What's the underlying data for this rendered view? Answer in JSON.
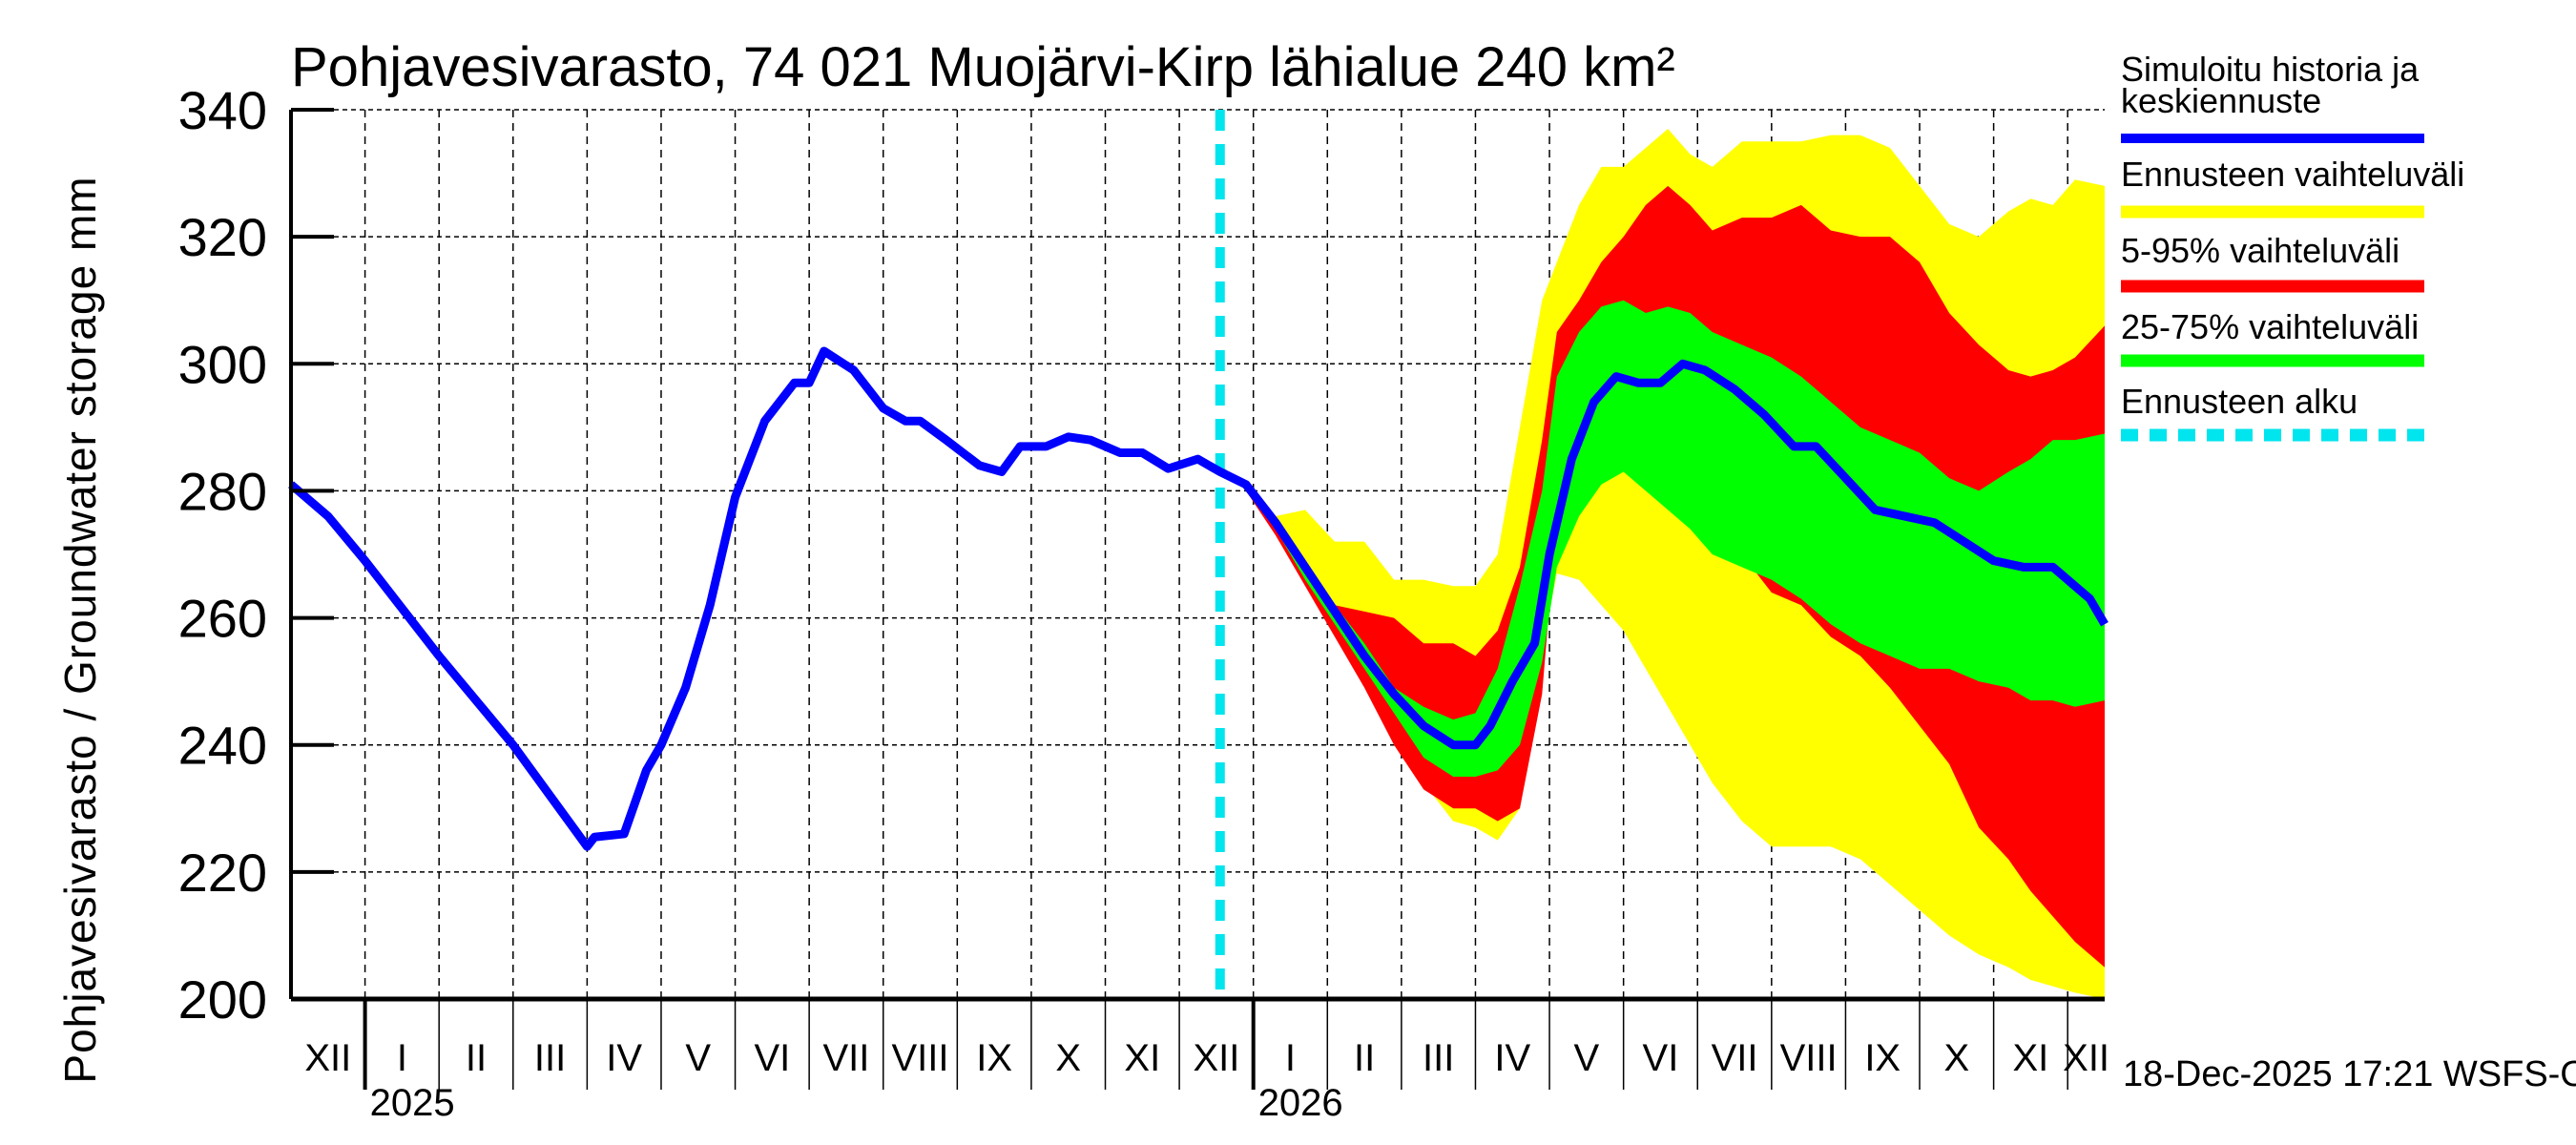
{
  "chart_data": {
    "type": "area",
    "title": "Pohjavesivarasto, 74 021 Muojärvi-Kirp lähialue 240 km²",
    "ylabel": "Pohjavesivarasto / Groundwater storage   mm",
    "xlabel": "",
    "ylim": [
      200,
      340
    ],
    "yticks": [
      200,
      220,
      240,
      260,
      280,
      300,
      320,
      340
    ],
    "grid": true,
    "x_units": "months since 2025-01-01",
    "xlim": [
      -1.0,
      23.5
    ],
    "month_ticks": [
      {
        "x": -1,
        "label": "XII"
      },
      {
        "x": 0,
        "label": "I"
      },
      {
        "x": 1,
        "label": "II"
      },
      {
        "x": 2,
        "label": "III"
      },
      {
        "x": 3,
        "label": "IV"
      },
      {
        "x": 4,
        "label": "V"
      },
      {
        "x": 5,
        "label": "VI"
      },
      {
        "x": 6,
        "label": "VII"
      },
      {
        "x": 7,
        "label": "VIII"
      },
      {
        "x": 8,
        "label": "IX"
      },
      {
        "x": 9,
        "label": "X"
      },
      {
        "x": 10,
        "label": "XI"
      },
      {
        "x": 11,
        "label": "XII"
      },
      {
        "x": 12,
        "label": "I"
      },
      {
        "x": 13,
        "label": "II"
      },
      {
        "x": 14,
        "label": "III"
      },
      {
        "x": 15,
        "label": "IV"
      },
      {
        "x": 16,
        "label": "V"
      },
      {
        "x": 17,
        "label": "VI"
      },
      {
        "x": 18,
        "label": "VII"
      },
      {
        "x": 19,
        "label": "VIII"
      },
      {
        "x": 20,
        "label": "IX"
      },
      {
        "x": 21,
        "label": "X"
      },
      {
        "x": 22,
        "label": "XI"
      },
      {
        "x": 23,
        "label": "XII"
      }
    ],
    "year_ticks": [
      {
        "x": 0,
        "label": "2025"
      },
      {
        "x": 12,
        "label": "2026"
      }
    ],
    "forecast_start": 11.55,
    "legend": {
      "placement": "right",
      "entries": [
        {
          "label": "Simuloitu historia ja keskiennuste",
          "color": "#0000ff",
          "style": "line"
        },
        {
          "label": "Ennusteen vaihteluväli",
          "color": "#ffff00",
          "style": "band"
        },
        {
          "label": "5-95% vaihteluväli",
          "color": "#ff0000",
          "style": "band"
        },
        {
          "label": "25-75% vaihteluväli",
          "color": "#00ff00",
          "style": "band"
        },
        {
          "label": "Ennusteen alku",
          "color": "#00e5ee",
          "style": "dashed"
        }
      ]
    },
    "series": [
      {
        "name": "Simuloitu historia ja keskiennuste",
        "color": "#0000ff",
        "x": [
          -1.0,
          -0.5,
          0,
          1,
          2,
          3.0,
          3.1,
          3.5,
          3.8,
          4,
          4.33,
          4.66,
          5,
          5.4,
          5.8,
          6.0,
          6.2,
          6.6,
          7.0,
          7.3,
          7.5,
          7.85,
          8.3,
          8.6,
          8.85,
          9.2,
          9.5,
          9.8,
          10.2,
          10.5,
          10.85,
          11.25,
          11.55,
          11.9,
          12.3,
          12.7,
          13.1,
          13.5,
          13.9,
          14.3,
          14.7,
          15.0,
          15.2,
          15.5,
          15.8,
          16.0,
          16.3,
          16.6,
          16.9,
          17.2,
          17.5,
          17.8,
          18.1,
          18.5,
          18.9,
          19.3,
          19.6,
          20.0,
          20.4,
          20.8,
          21.2,
          21.6,
          22.0,
          22.4,
          22.8,
          23.1,
          23.3,
          23.5
        ],
        "values": [
          281,
          276,
          269,
          254,
          240,
          224,
          225.5,
          226,
          236,
          240,
          249,
          262,
          279,
          291,
          297,
          297,
          302,
          299,
          293,
          291,
          291,
          288,
          284,
          283,
          287,
          287,
          288.5,
          288,
          286,
          286,
          283.5,
          285,
          283,
          281,
          275,
          268,
          261,
          254,
          248,
          243,
          240,
          240,
          243,
          250,
          256,
          270,
          285,
          294,
          298,
          297,
          297,
          300,
          299,
          296,
          292,
          287,
          287,
          282,
          277,
          276,
          275,
          272,
          269,
          268,
          268,
          265,
          263,
          259
        ]
      },
      {
        "name": "Ennusteen vaihteluväli",
        "color": "#ffff00",
        "x": [
          11.55,
          11.9,
          12.3,
          12.7,
          13.1,
          13.5,
          13.9,
          14.3,
          14.7,
          15.0,
          15.3,
          15.6,
          15.9,
          16.1,
          16.4,
          16.7,
          17.0,
          17.3,
          17.6,
          17.9,
          18.2,
          18.6,
          19.0,
          19.4,
          19.8,
          20.2,
          20.6,
          21.0,
          21.4,
          21.8,
          22.2,
          22.5,
          22.8,
          23.1,
          23.5
        ],
        "upper": [
          284,
          281,
          276,
          277,
          272,
          272,
          266,
          266,
          265,
          265,
          270,
          290,
          310,
          316,
          325,
          331,
          331,
          334,
          337,
          333,
          331,
          335,
          335,
          335,
          336,
          336,
          334,
          328,
          322,
          320,
          324,
          326,
          325,
          329,
          328
        ],
        "lower": [
          284,
          280,
          274,
          266,
          258,
          250,
          242,
          234,
          228,
          227,
          225,
          230,
          255,
          267,
          266,
          262,
          258,
          252,
          246,
          240,
          234,
          228,
          224,
          224,
          224,
          222,
          218,
          214,
          210,
          207,
          205,
          203,
          202,
          201,
          200
        ]
      },
      {
        "name": "5-95% vaihteluväli",
        "color": "#ff0000",
        "x": [
          11.55,
          11.9,
          12.3,
          12.7,
          13.1,
          13.5,
          13.9,
          14.3,
          14.7,
          15.0,
          15.3,
          15.6,
          15.9,
          16.1,
          16.4,
          16.7,
          17.0,
          17.3,
          17.6,
          17.9,
          18.2,
          18.6,
          19.0,
          19.4,
          19.8,
          20.2,
          20.6,
          21.0,
          21.4,
          21.8,
          22.2,
          22.5,
          22.8,
          23.1,
          23.5
        ],
        "upper": [
          284,
          281,
          274,
          268,
          262,
          261,
          260,
          256,
          256,
          254,
          258,
          268,
          288,
          305,
          310,
          316,
          320,
          325,
          328,
          325,
          321,
          323,
          323,
          325,
          321,
          320,
          320,
          316,
          308,
          303,
          299,
          298,
          299,
          301,
          306
        ],
        "lower": [
          284,
          280,
          273,
          265,
          257,
          249,
          240,
          233,
          230,
          230,
          228,
          230,
          248,
          276,
          286,
          287,
          285,
          283,
          282,
          279,
          274,
          270,
          264,
          262,
          257,
          254,
          249,
          243,
          237,
          227,
          222,
          217,
          213,
          209,
          205
        ]
      },
      {
        "name": "25-75% vaihteluväli",
        "color": "#00ff00",
        "x": [
          11.55,
          11.9,
          12.3,
          12.7,
          13.1,
          13.5,
          13.9,
          14.3,
          14.7,
          15.0,
          15.3,
          15.6,
          15.9,
          16.1,
          16.4,
          16.7,
          17.0,
          17.3,
          17.6,
          17.9,
          18.2,
          18.6,
          19.0,
          19.4,
          19.8,
          20.2,
          20.6,
          21.0,
          21.4,
          21.8,
          22.2,
          22.5,
          22.8,
          23.1,
          23.5
        ],
        "upper": [
          284,
          281,
          275,
          268,
          262,
          256,
          249,
          246,
          244,
          245,
          252,
          265,
          280,
          298,
          305,
          309,
          310,
          308,
          309,
          308,
          305,
          303,
          301,
          298,
          294,
          290,
          288,
          286,
          282,
          280,
          283,
          285,
          288,
          288,
          289
        ],
        "lower": [
          284,
          280,
          274,
          266,
          259,
          252,
          245,
          238,
          235,
          235,
          236,
          240,
          253,
          268,
          276,
          281,
          283,
          280,
          277,
          274,
          270,
          268,
          266,
          263,
          259,
          256,
          254,
          252,
          252,
          250,
          249,
          247,
          247,
          246,
          247
        ]
      }
    ],
    "footer": "18-Dec-2025 17:21 WSFS-O"
  }
}
